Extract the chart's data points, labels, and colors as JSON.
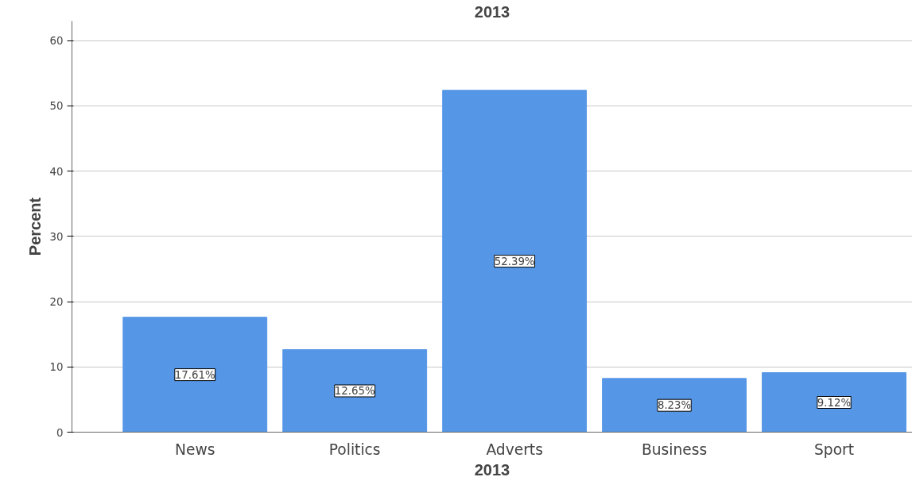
{
  "chart_data": {
    "type": "bar",
    "title": "2013",
    "xlabel": "2013",
    "ylabel": "Percent",
    "categories": [
      "News",
      "Politics",
      "Adverts",
      "Business",
      "Sport"
    ],
    "values": [
      17.61,
      12.65,
      52.39,
      8.23,
      9.12
    ],
    "value_labels": [
      "17.61%",
      "12.65%",
      "52.39%",
      "8.23%",
      "9.12%"
    ],
    "color": "#5596e6",
    "ylim": [
      0,
      63
    ],
    "yticks": [
      0,
      10,
      20,
      30,
      40,
      50,
      60
    ],
    "grid": "y"
  }
}
